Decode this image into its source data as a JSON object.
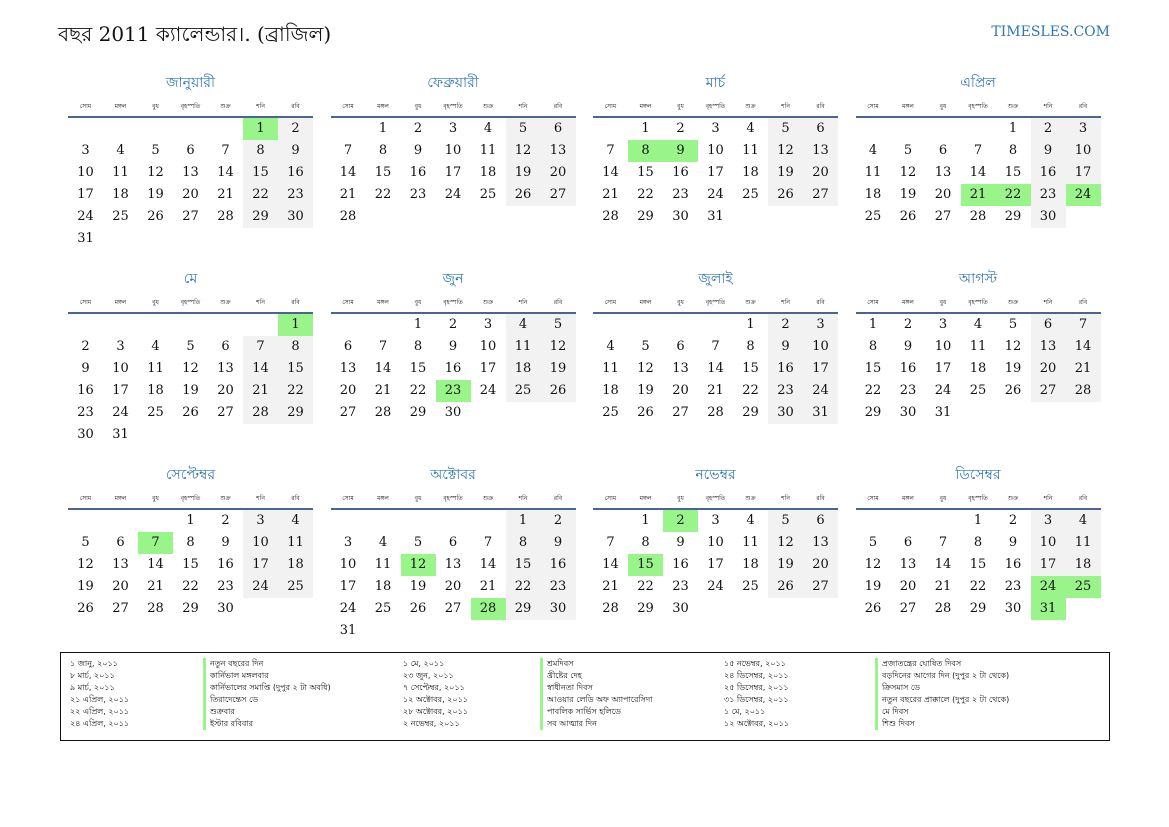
{
  "header": {
    "title": "বছর 2011 ক্যালেন্ডার।. (ব্রাজিল)",
    "site": "TIMESLES.COM"
  },
  "colors": {
    "accent": "#2e75b6",
    "holiday": "#99f58a",
    "weekend": "#f2f2f2",
    "rule": "#4a6690"
  },
  "weekdays": [
    "সোম",
    "মঙ্গল",
    "বুধ",
    "বৃহস্পতি",
    "শুক্র",
    "শনি",
    "রবি"
  ],
  "months": [
    {
      "name": "জানুয়ারী",
      "start": 5,
      "days": 31,
      "holidays": [
        1
      ]
    },
    {
      "name": "ফেব্রুয়ারী",
      "start": 1,
      "days": 28,
      "holidays": []
    },
    {
      "name": "মার্চ",
      "start": 1,
      "days": 31,
      "holidays": [
        8,
        9
      ]
    },
    {
      "name": "এপ্রিল",
      "start": 4,
      "days": 30,
      "holidays": [
        21,
        22,
        24
      ]
    },
    {
      "name": "মে",
      "start": 6,
      "days": 31,
      "holidays": [
        1
      ]
    },
    {
      "name": "জুন",
      "start": 2,
      "days": 30,
      "holidays": [
        23
      ]
    },
    {
      "name": "জুলাই",
      "start": 4,
      "days": 31,
      "holidays": []
    },
    {
      "name": "আগস্ট",
      "start": 0,
      "days": 31,
      "holidays": []
    },
    {
      "name": "সেপ্টেম্বর",
      "start": 3,
      "days": 30,
      "holidays": [
        7
      ]
    },
    {
      "name": "অক্টোবর",
      "start": 5,
      "days": 31,
      "holidays": [
        12,
        28
      ]
    },
    {
      "name": "নভেম্বর",
      "start": 1,
      "days": 30,
      "holidays": [
        2,
        15
      ]
    },
    {
      "name": "ডিসেম্বর",
      "start": 3,
      "days": 31,
      "holidays": [
        24,
        25,
        31
      ]
    }
  ],
  "legend": [
    {
      "date": "১ জানু, ২০১১",
      "name": "নতুন বছরের দিন"
    },
    {
      "date": "৮ মার্চ, ২০১১",
      "name": "কার্নিভাল মঙ্গলবার"
    },
    {
      "date": "৯ মার্চ, ২০১১",
      "name": "কার্নিভালের সমাপ্তি (দুপুর ২ টা অবধি)"
    },
    {
      "date": "২১ এপ্রিল, ২০১১",
      "name": "তিরাদেন্তেস ডে"
    },
    {
      "date": "২২ এপ্রিল, ২০১১",
      "name": "শুক্রবার"
    },
    {
      "date": "২৪ এপ্রিল, ২০১১",
      "name": "ইস্টার রবিবার"
    },
    {
      "date": "১ মে, ২০১১",
      "name": "শ্রমদিবস"
    },
    {
      "date": "২৩ জুন, ২০১১",
      "name": "খ্রীষ্টের দেহ"
    },
    {
      "date": "৭ সেপ্টেম্বর, ২০১১",
      "name": "স্বাধীনতা দিবস"
    },
    {
      "date": "১২ অক্টোবর, ২০১১",
      "name": "আওয়ার লেডি অফ অ্যাপারেসিদা"
    },
    {
      "date": "২৮ অক্টোবর, ২০১১",
      "name": "পাবলিক সার্ভিস হলিডে"
    },
    {
      "date": "২ নভেম্বর, ২০১১",
      "name": "সব আত্মার দিন"
    },
    {
      "date": "১৫ নভেম্বর, ২০১১",
      "name": "প্রজাতন্ত্রের ঘোষিত দিবস"
    },
    {
      "date": "২৪ ডিসেম্বর, ২০১১",
      "name": "বড়দিনের আগের দিন (দুপুর ২ টা থেকে)"
    },
    {
      "date": "২৫ ডিসেম্বর, ২০১১",
      "name": "ক্রিসমাস ডে"
    },
    {
      "date": "৩১ ডিসেম্বর, ২০১১",
      "name": "নতুন বছরের প্রাক্কালে (দুপুর ২ টা থেকে)"
    },
    {
      "date": "১ মে, ২০১১",
      "name": "মে দিবস"
    },
    {
      "date": "১২ অক্টোবর, ২০১১",
      "name": "শিশু দিবস"
    }
  ]
}
